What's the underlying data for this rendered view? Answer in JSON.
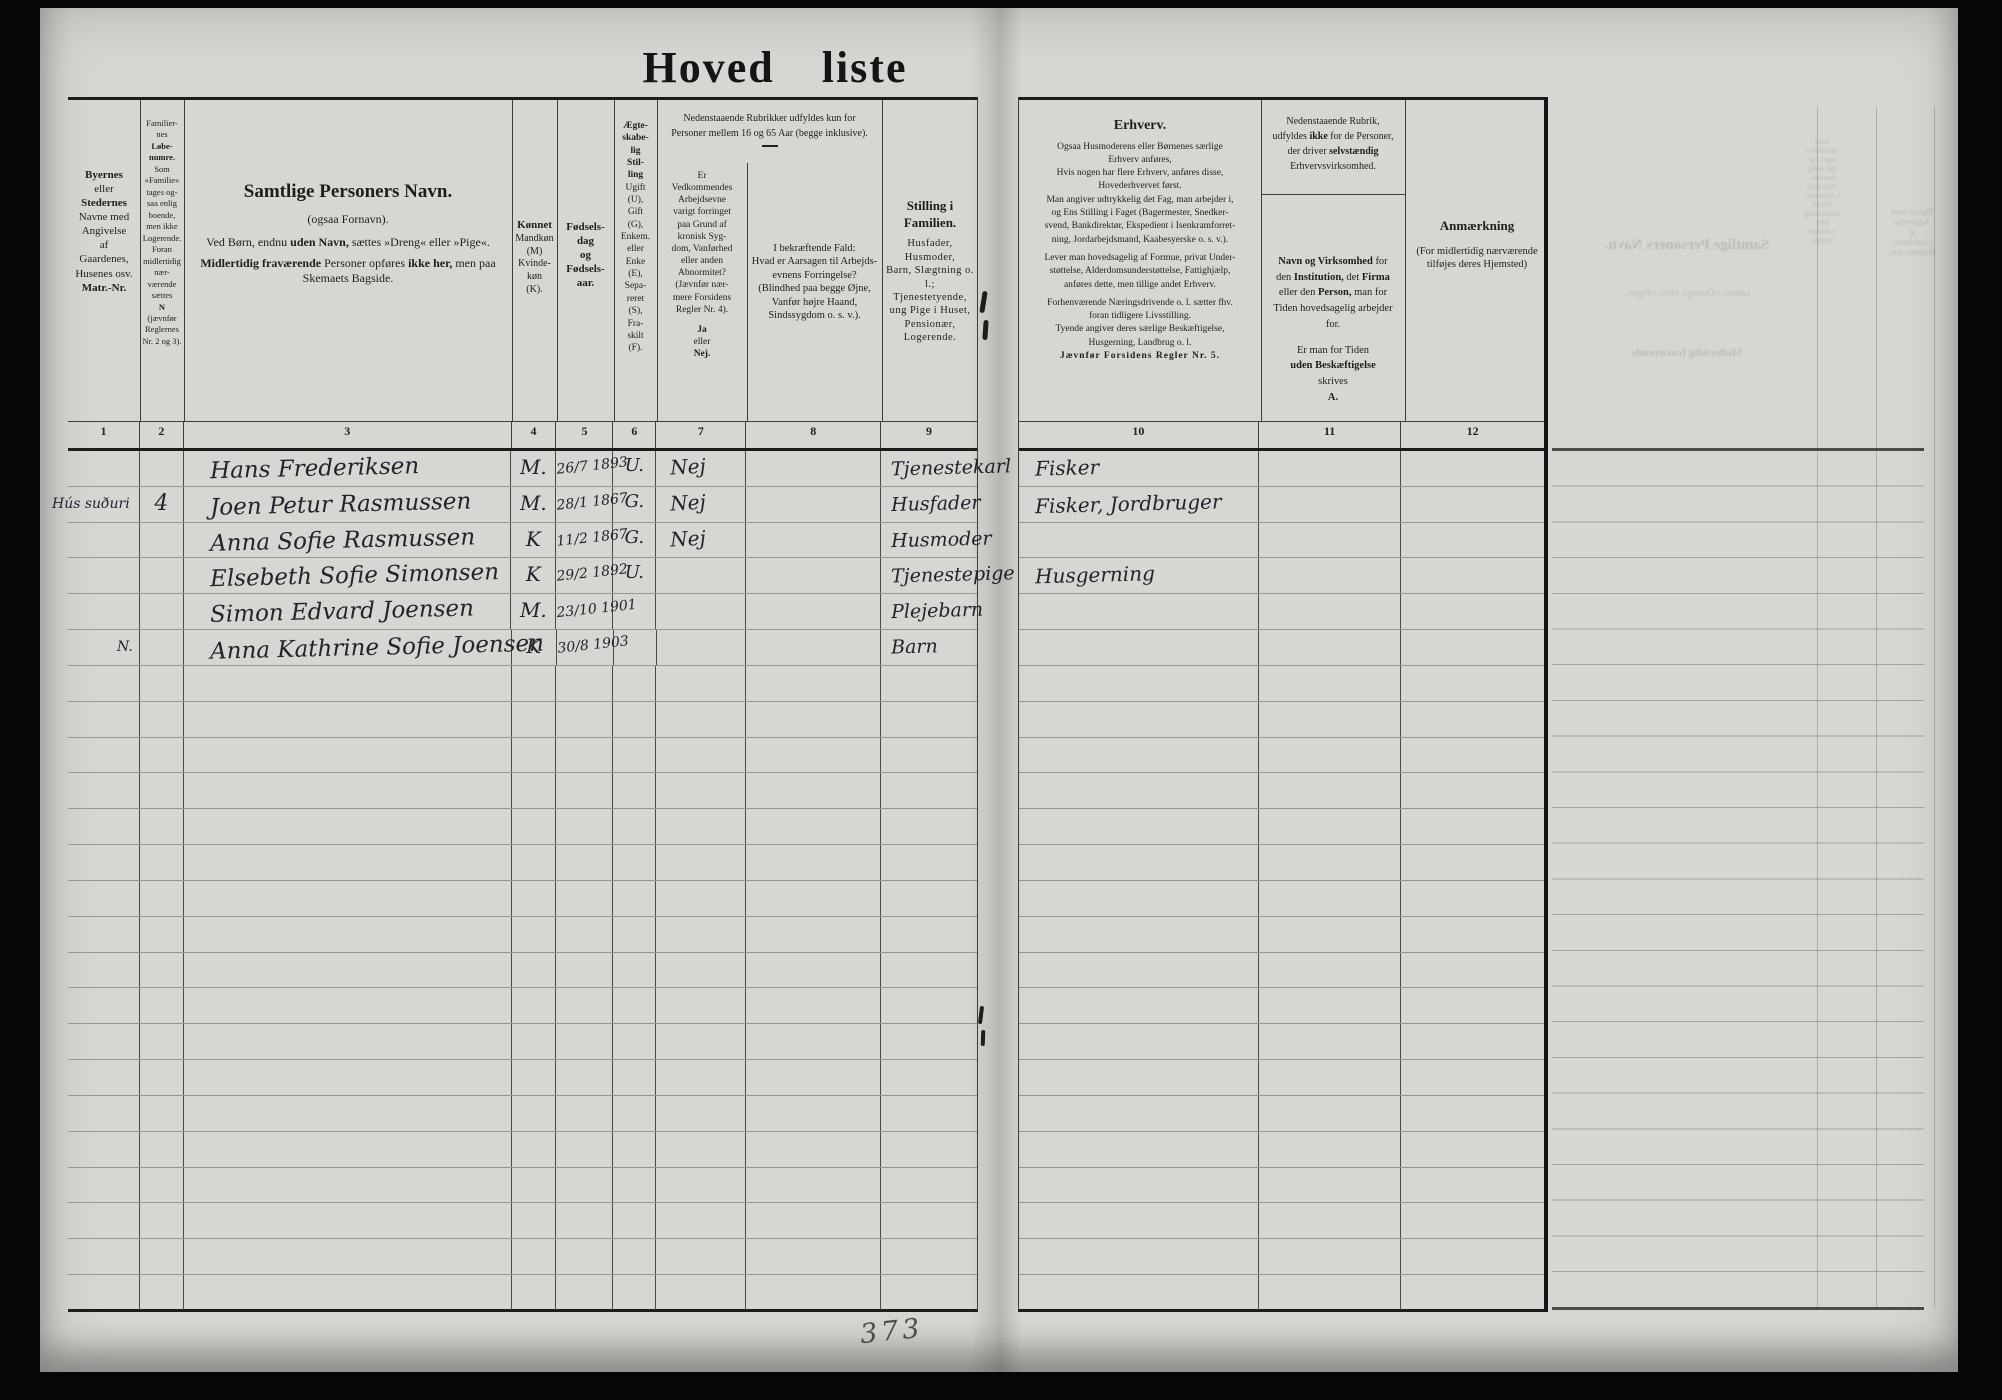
{
  "page": {
    "title": "Hoved liste",
    "pencil_number": "373"
  },
  "left_table": {
    "col_numbers": [
      "1",
      "2",
      "3",
      "4",
      "5",
      "6",
      "7",
      "8",
      "9"
    ],
    "col1": {
      "b1": "Byernes",
      "r1": "eller",
      "b2": "Stedernes",
      "r2": "Navne med\nAngivelse\naf\nGaardenes,\nHusenes osv.",
      "b3": "Matr.-Nr."
    },
    "col2": {
      "r1": "Familier-\nnes",
      "b1": "Løbe-\nnumre.",
      "r2": "Som\n»Familie«\ntages og-\nsaa enlig\nboende,\nmen ikke\nLogerende.\nForan\nmidlertidig\nnær-\nværende\nsættes",
      "b2": "N",
      "r3": "(jævnfør\nReglernes\nNr. 2 og 3)."
    },
    "col3": {
      "title": "Samtlige Personers Navn.",
      "sub": "(ogsaa Fornavn).",
      "l2a": "Ved Børn, endnu ",
      "l2b": "uden Navn,",
      "l2c": " sættes »Dreng« eller »Pige«.",
      "l3a": "Midlertidig fraværende",
      "l3b": " Personer opføres ",
      "l3c": "ikke her,",
      "l3d": " men paa Skemaets Bagside."
    },
    "col4": {
      "b": "Kønnet",
      "r": "Mandkøn\n(M)\nKvinde-\nkøn\n(K)."
    },
    "col5": {
      "b": "Fødsels-\ndag\nog\nFødsels-\naar."
    },
    "col6": {
      "b": "Ægte-\nskabe-\nlig\nStil-\nling",
      "r": "Ugift\n(U),\nGift\n(G),\nEnkem.\neller\nEnke\n(E),\nSepa-\nreret\n(S),\nFra-\nskilt\n(F)."
    },
    "span_7_8": "Nedenstaaende Rubrikker udfyldes kun for\nPersoner mellem 16 og 65 Aar (begge inklusive).",
    "col7": {
      "r": "Er\nVedkommendes\nArbejdsevne\nvarigt forringet\npaa Grund af\nkronisk Syg-\ndom, Vanførhed\neller anden\nAbnormitet?\n(Jævnfør nær-\nmere Forsidens\nRegler Nr. 4).",
      "b1": "Ja",
      "r2": "eller",
      "b2": "Nej."
    },
    "col8": {
      "r": "I bekræftende Fald:\nHvad er Aarsagen til Arbejds-\nevnens Forringelse?\n(Blindhed paa begge Øjne,\nVanfør højre Haand,\nSindssygdom o. s. v.)."
    },
    "col9": {
      "b": "Stilling i Familien.",
      "r": "Husfader, Husmoder,\nBarn, Slægtning o. l.;\nTjenestetyende,\nung Pige i Huset,\nPensionær,\nLogerende."
    }
  },
  "right_table": {
    "col_numbers": [
      "10",
      "11",
      "12"
    ],
    "col10": {
      "title": "Erhverv.",
      "p1": "Ogsaa Husmoderens eller Børnenes særlige\nErhverv anføres,",
      "p2": "Hvis nogen har flere Erhverv, anføres disse,\nHovederhvervet først.",
      "p3": "Man angiver udtrykkelig det Fag, man arbejder i,\nog Ens Stilling i Faget (Bagermester, Snedker-\nsvend, Bankdirektør, Ekspedient i Isenkramforret-\nning, Jordarbejdsmand, Kaabesyerske o. s. v.).",
      "p4": "Lever man hovedsagelig af Formue, privat Under-\nstøttelse, Alderdomsunderstøttelse, Fattighjælp,\nanføres dette, men tillige andet Erhverv.",
      "p5": "Forhenværende Næringsdrivende o. l. sætter fhv.\nforan tidligere Livsstilling.",
      "p6": "Tyende angiver deres særlige Beskæftigelse,\nHusgerning, Landbrug o. l.",
      "p7": "Jævnfør Forsidens Regler Nr. 5."
    },
    "col11": {
      "n1": "Nedenstaaende Rubrik,\nudfyldes ",
      "n2": "ikke",
      "n3": " for de Personer,\nder driver ",
      "n4": "selvstændig",
      "n5": "\nErhvervsvirksomhed.",
      "m1": "Navn og Virksomhed",
      "m2a": " for\nden ",
      "m2b": "Institution,",
      "m2c": " det ",
      "m2d": "Firma",
      "m2e": "\neller den ",
      "m2f": "Person,",
      "m2g": " man for\nTiden hovedsagelig arbejder\nfor.",
      "e1": "Er man for Tiden",
      "e2": "uden Beskæftigelse",
      "e3": "skrives",
      "e4": "A."
    },
    "col12": {
      "title": "Anmærkning",
      "sub": "(For midlertidig nærværende\ntilføjes deres Hjemsted)"
    }
  },
  "rows": [
    {
      "place": "",
      "num": "",
      "name": "Hans Frederiksen",
      "sex": "M.",
      "born": "26/7 1893",
      "marital": "U.",
      "work": "Nej",
      "cause": "",
      "position": "Tjenestekarl",
      "occupation": "Fisker",
      "firm": "",
      "remark": ""
    },
    {
      "place": "Hús suðuri",
      "num": "4",
      "name": "Joen Petur Rasmussen",
      "sex": "M.",
      "born": "28/1 1867",
      "marital": "G.",
      "work": "Nej",
      "cause": "",
      "position": "Husfader",
      "occupation": "Fisker, Jordbruger",
      "firm": "",
      "remark": ""
    },
    {
      "place": "",
      "num": "",
      "name": "Anna Sofie Rasmussen",
      "sex": "K",
      "born": "11/2 1867",
      "marital": "G.",
      "work": "Nej",
      "cause": "",
      "position": "Husmoder",
      "occupation": "",
      "firm": "",
      "remark": ""
    },
    {
      "place": "",
      "num": "",
      "name": "Elsebeth Sofie Simonsen",
      "sex": "K",
      "born": "29/2 1892",
      "marital": "U.",
      "work": "",
      "cause": "",
      "position": "Tjenestepige",
      "occupation": "Husgerning",
      "firm": "",
      "remark": ""
    },
    {
      "place": "",
      "num": "",
      "name": "Simon Edvard Joensen",
      "sex": "M.",
      "born": "23/10 1901",
      "marital": "",
      "work": "",
      "cause": "",
      "position": "Plejebarn",
      "occupation": "",
      "firm": "",
      "remark": ""
    },
    {
      "place": "N.",
      "num": "",
      "name": "Anna Kathrine Sofie Joensen",
      "sex": "K",
      "born": "30/8 1903",
      "marital": "",
      "work": "",
      "cause": "",
      "position": "Barn",
      "occupation": "",
      "firm": "",
      "remark": ""
    }
  ],
  "empty_row_count": 18
}
